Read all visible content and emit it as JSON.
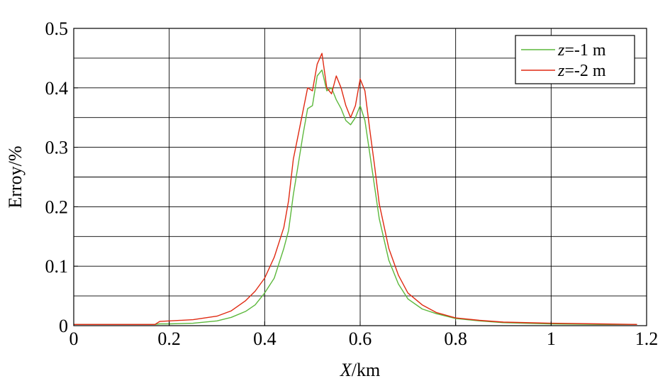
{
  "chart_data": {
    "type": "line",
    "xlabel_italic": "X",
    "xlabel_rest": "/km",
    "ylabel": "Erroy/%",
    "xlim": [
      0,
      1.2
    ],
    "ylim": [
      0,
      0.5
    ],
    "xticks": [
      0,
      0.2,
      0.4,
      0.6,
      0.8,
      1,
      1.2
    ],
    "xtick_labels": [
      "0",
      "0.2",
      "0.4",
      "0.6",
      "0.8",
      "1",
      "1.2"
    ],
    "yticks": [
      0,
      0.1,
      0.2,
      0.3,
      0.4,
      0.5
    ],
    "ytick_labels": [
      "0",
      "0.1",
      "0.2",
      "0.3",
      "0.4",
      "0.5"
    ],
    "grid": true,
    "legend_position": "top-right",
    "series": [
      {
        "name_italic": "z",
        "name_rest": "=-1 m",
        "color": "#5cb83c",
        "x": [
          0,
          0.1,
          0.17,
          0.18,
          0.2,
          0.25,
          0.3,
          0.33,
          0.36,
          0.38,
          0.4,
          0.42,
          0.44,
          0.45,
          0.46,
          0.47,
          0.48,
          0.49,
          0.5,
          0.51,
          0.52,
          0.53,
          0.54,
          0.55,
          0.56,
          0.57,
          0.58,
          0.59,
          0.6,
          0.61,
          0.62,
          0.63,
          0.64,
          0.66,
          0.68,
          0.7,
          0.73,
          0.76,
          0.8,
          0.85,
          0.9,
          1.0,
          1.1,
          1.18
        ],
        "y": [
          0.002,
          0.002,
          0.002,
          0.003,
          0.003,
          0.004,
          0.008,
          0.014,
          0.024,
          0.035,
          0.055,
          0.08,
          0.13,
          0.16,
          0.22,
          0.27,
          0.32,
          0.365,
          0.37,
          0.42,
          0.43,
          0.395,
          0.4,
          0.38,
          0.365,
          0.345,
          0.338,
          0.35,
          0.37,
          0.345,
          0.29,
          0.235,
          0.18,
          0.11,
          0.07,
          0.045,
          0.028,
          0.02,
          0.012,
          0.008,
          0.005,
          0.003,
          0.002,
          0.002
        ]
      },
      {
        "name_italic": "z",
        "name_rest": "=-2 m",
        "color": "#e02a12",
        "x": [
          0,
          0.1,
          0.17,
          0.18,
          0.2,
          0.25,
          0.3,
          0.33,
          0.36,
          0.38,
          0.4,
          0.42,
          0.44,
          0.45,
          0.46,
          0.47,
          0.48,
          0.49,
          0.5,
          0.51,
          0.52,
          0.53,
          0.54,
          0.55,
          0.56,
          0.57,
          0.58,
          0.59,
          0.6,
          0.61,
          0.62,
          0.63,
          0.64,
          0.66,
          0.68,
          0.7,
          0.73,
          0.76,
          0.8,
          0.85,
          0.9,
          1.0,
          1.1,
          1.18
        ],
        "y": [
          0.002,
          0.002,
          0.002,
          0.007,
          0.008,
          0.01,
          0.016,
          0.025,
          0.042,
          0.058,
          0.08,
          0.115,
          0.165,
          0.21,
          0.28,
          0.32,
          0.36,
          0.4,
          0.395,
          0.44,
          0.458,
          0.4,
          0.39,
          0.42,
          0.4,
          0.37,
          0.35,
          0.37,
          0.415,
          0.395,
          0.33,
          0.27,
          0.205,
          0.13,
          0.085,
          0.055,
          0.035,
          0.022,
          0.013,
          0.009,
          0.006,
          0.004,
          0.003,
          0.002
        ]
      }
    ]
  }
}
